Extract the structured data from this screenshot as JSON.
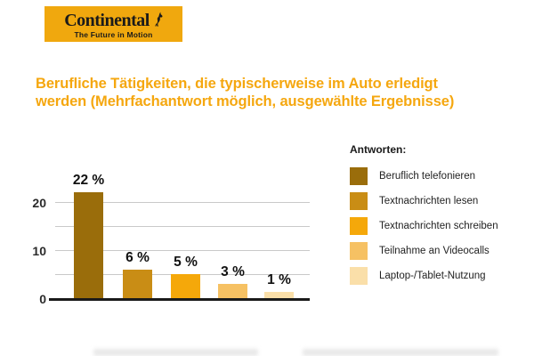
{
  "logo": {
    "wordmark": "Continental",
    "tagline": "The Future in Motion",
    "bg_color": "#F0A80E"
  },
  "title": {
    "line1": "Berufliche Tätigkeiten, die typischerweise im Auto erledigt",
    "line2": "werden (Mehrfachantwort möglich, ausgewählte Ergebnisse)",
    "color": "#F5A70F"
  },
  "legend": {
    "title": "Antworten:",
    "items": [
      "Beruflich telefonieren",
      "Textnachrichten lesen",
      "Textnachrichten schreiben",
      "Teilnahme an Videocalls",
      "Laptop-/Tablet-Nutzung"
    ]
  },
  "chart_data": {
    "type": "bar",
    "title": "Berufliche Tätigkeiten, die typischerweise im Auto erledigt werden (Mehrfachantwort möglich, ausgewählte Ergebnisse)",
    "categories": [
      "Beruflich telefonieren",
      "Textnachrichten lesen",
      "Textnachrichten schreiben",
      "Teilnahme an Videocalls",
      "Laptop-/Tablet-Nutzung"
    ],
    "values": [
      22,
      6,
      5,
      3,
      1
    ],
    "value_labels": [
      "22 %",
      "6 %",
      "5 %",
      "3 %",
      "1 %"
    ],
    "unit": "%",
    "colors": [
      "#9A6D0B",
      "#C98D15",
      "#F5A80A",
      "#F6C163",
      "#FADFA9"
    ],
    "yticks": [
      0,
      10,
      20
    ],
    "gridline_values": [
      5,
      10,
      15,
      20
    ],
    "ylim": [
      0,
      27
    ],
    "grid": true,
    "legend_position": "right",
    "grid_color": "#c9c9c9",
    "axis_color": "#1a1a1a"
  }
}
